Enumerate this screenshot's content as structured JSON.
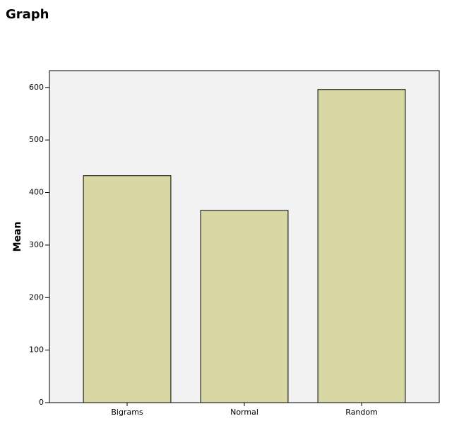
{
  "chart_data": {
    "type": "bar",
    "title": "Graph",
    "y_label": "Mean",
    "categories": [
      "Bigrams",
      "Normal",
      "Random"
    ],
    "values": [
      432,
      366,
      596
    ],
    "color": "#d9d7a4",
    "ylim": [
      0,
      632
    ],
    "yticks": [
      0,
      100,
      200,
      300,
      400,
      500,
      600
    ],
    "grid": false
  }
}
